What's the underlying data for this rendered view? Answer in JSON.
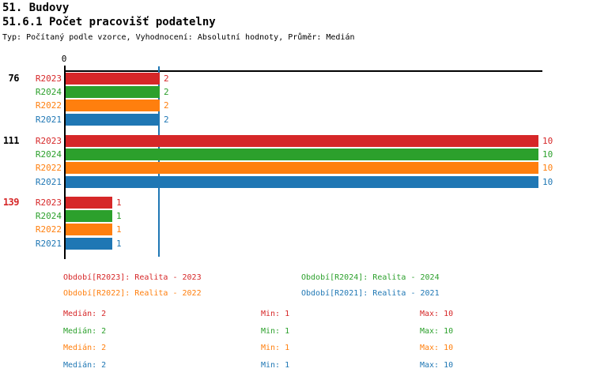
{
  "header": {
    "title": "51. Budovy",
    "subtitle": "51.6.1 Počet pracovišť podatelny",
    "meta": "Typ: Počítaný podle vzorce, Vyhodnocení: Absolutní hodnoty, Průměr: Medián"
  },
  "colors": {
    "red": "#d62728",
    "green": "#2ca02c",
    "orange": "#ff7f0e",
    "blue": "#1f77b4",
    "axis": "#000000",
    "median_line": "#1f77b4"
  },
  "chart_data": {
    "type": "bar",
    "orientation": "horizontal",
    "title": "51.6.1 Počet pracovišť podatelny",
    "xlim": [
      0,
      10
    ],
    "axis_zero_label": "0",
    "median_line_value": 2,
    "series_order": [
      "R2023",
      "R2024",
      "R2022",
      "R2021"
    ],
    "series_colors": {
      "R2023": "#d62728",
      "R2024": "#2ca02c",
      "R2022": "#ff7f0e",
      "R2021": "#1f77b4"
    },
    "groups": [
      {
        "label": "76",
        "label_color": "#000000",
        "values": [
          2,
          2,
          2,
          2
        ]
      },
      {
        "label": "111",
        "label_color": "#000000",
        "values": [
          10,
          10,
          10,
          10
        ]
      },
      {
        "label": "139",
        "label_color": "#d62728",
        "values": [
          1,
          1,
          1,
          1
        ]
      }
    ]
  },
  "legend": {
    "items": [
      {
        "label": "Období[R2023]: Realita - 2023",
        "color": "#d62728"
      },
      {
        "label": "Období[R2024]: Realita - 2024",
        "color": "#2ca02c"
      },
      {
        "label": "Období[R2022]: Realita - 2022",
        "color": "#ff7f0e"
      },
      {
        "label": "Období[R2021]: Realita - 2021",
        "color": "#1f77b4"
      }
    ]
  },
  "stats": {
    "rows": [
      {
        "median": "Medián: 2",
        "min": "Min: 1",
        "max": "Max: 10",
        "color": "#d62728"
      },
      {
        "median": "Medián: 2",
        "min": "Min: 1",
        "max": "Max: 10",
        "color": "#2ca02c"
      },
      {
        "median": "Medián: 2",
        "min": "Min: 1",
        "max": "Max: 10",
        "color": "#ff7f0e"
      },
      {
        "median": "Medián: 2",
        "min": "Min: 1",
        "max": "Max: 10",
        "color": "#1f77b4"
      }
    ]
  }
}
